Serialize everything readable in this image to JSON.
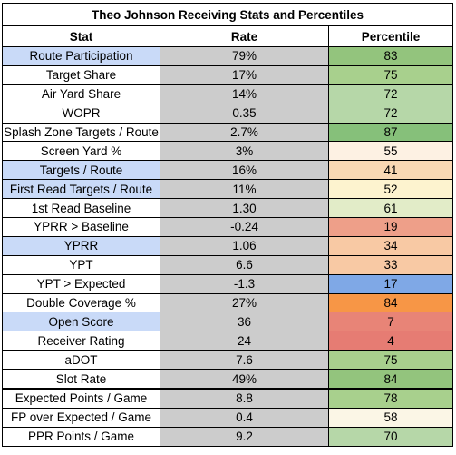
{
  "title": "Theo Johnson Receiving Stats and Percentiles",
  "columns": [
    "Stat",
    "Rate",
    "Percentile"
  ],
  "colors": {
    "highlight_stat": "#c9daf8",
    "rate_bg": "#cccccc"
  },
  "rows": [
    {
      "stat": "Route Participation",
      "rate": "79%",
      "percentile": "83",
      "highlight": true,
      "pct_color": "#93c47d"
    },
    {
      "stat": "Target Share",
      "rate": "17%",
      "percentile": "75",
      "highlight": false,
      "pct_color": "#a8d08d"
    },
    {
      "stat": "Air Yard Share",
      "rate": "14%",
      "percentile": "72",
      "highlight": false,
      "pct_color": "#b6d7a8"
    },
    {
      "stat": "WOPR",
      "rate": "0.35",
      "percentile": "72",
      "highlight": false,
      "pct_color": "#b6d7a8"
    },
    {
      "stat": "Splash Zone Targets / Route",
      "rate": "2.7%",
      "percentile": "87",
      "highlight": false,
      "pct_color": "#86c07a"
    },
    {
      "stat": "Screen Yard %",
      "rate": "3%",
      "percentile": "55",
      "highlight": false,
      "pct_color": "#fdf1e3"
    },
    {
      "stat": "Targets / Route",
      "rate": "16%",
      "percentile": "41",
      "highlight": true,
      "pct_color": "#f9d8b4"
    },
    {
      "stat": "First Read Targets / Route",
      "rate": "11%",
      "percentile": "52",
      "highlight": true,
      "pct_color": "#fdf3cf"
    },
    {
      "stat": "1st Read Baseline",
      "rate": "1.30",
      "percentile": "61",
      "highlight": false,
      "pct_color": "#e2ecc8"
    },
    {
      "stat": "YPRR > Baseline",
      "rate": "-0.24",
      "percentile": "19",
      "highlight": false,
      "pct_color": "#ee9f89"
    },
    {
      "stat": "YPRR",
      "rate": "1.06",
      "percentile": "34",
      "highlight": true,
      "pct_color": "#f8c9a4"
    },
    {
      "stat": "YPT",
      "rate": "6.6",
      "percentile": "33",
      "highlight": false,
      "pct_color": "#f8c9a4"
    },
    {
      "stat": "YPT > Expected",
      "rate": "-1.3",
      "percentile": "17",
      "highlight": false,
      "pct_color": "#7fa8e6"
    },
    {
      "stat": "Double Coverage %",
      "rate": "27%",
      "percentile": "84",
      "highlight": false,
      "pct_color": "#f79646"
    },
    {
      "stat": "Open Score",
      "rate": "36",
      "percentile": "7",
      "highlight": true,
      "pct_color": "#e88477"
    },
    {
      "stat": "Receiver Rating",
      "rate": "24",
      "percentile": "4",
      "highlight": false,
      "pct_color": "#e67c73"
    },
    {
      "stat": "aDOT",
      "rate": "7.6",
      "percentile": "75",
      "highlight": false,
      "pct_color": "#a8d08d"
    },
    {
      "stat": "Slot Rate",
      "rate": "49%",
      "percentile": "84",
      "highlight": false,
      "pct_color": "#93c47d"
    },
    {
      "stat": "Expected Points / Game",
      "rate": "8.8",
      "percentile": "78",
      "highlight": false,
      "pct_color": "#a8d08d",
      "thick_top": true
    },
    {
      "stat": "FP over Expected / Game",
      "rate": "0.4",
      "percentile": "58",
      "highlight": false,
      "pct_color": "#fbf6e6"
    },
    {
      "stat": "PPR Points / Game",
      "rate": "9.2",
      "percentile": "70",
      "highlight": false,
      "pct_color": "#b6d7a8"
    }
  ]
}
